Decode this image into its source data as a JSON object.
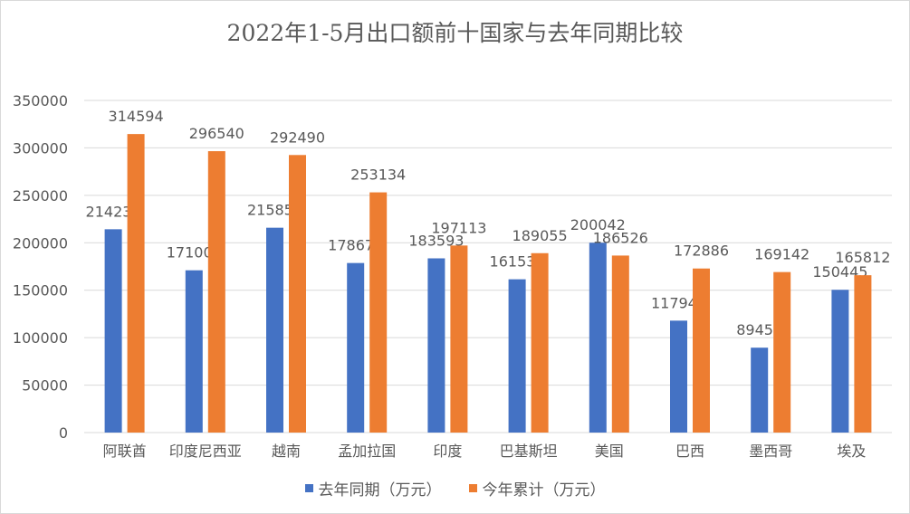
{
  "colors": {
    "series1": "#4472C4",
    "series2": "#ED7D31",
    "grid": "#d9d9d9",
    "text": "#595959"
  },
  "chart_data": {
    "type": "bar",
    "title": "2022年1-5月出口额前十国家与去年同期比较",
    "xlabel": "",
    "ylabel": "",
    "ylim": [
      0,
      350000
    ],
    "yticks": [
      0,
      50000,
      100000,
      150000,
      200000,
      250000,
      300000,
      350000
    ],
    "grid": true,
    "legend_position": "bottom",
    "categories": [
      "阿联酋",
      "印度尼西亚",
      "越南",
      "孟加拉国",
      "印度",
      "巴基斯坦",
      "美国",
      "巴西",
      "墨西哥",
      "埃及"
    ],
    "series": [
      {
        "name": "去年同期（万元）",
        "values": [
          214238,
          171007,
          215856,
          178675,
          183593,
          161530,
          200042,
          117948,
          89452,
          150445
        ]
      },
      {
        "name": "今年累计（万元）",
        "values": [
          314594,
          296540,
          292490,
          253134,
          197113,
          189055,
          186526,
          172886,
          169142,
          165812
        ]
      }
    ]
  }
}
